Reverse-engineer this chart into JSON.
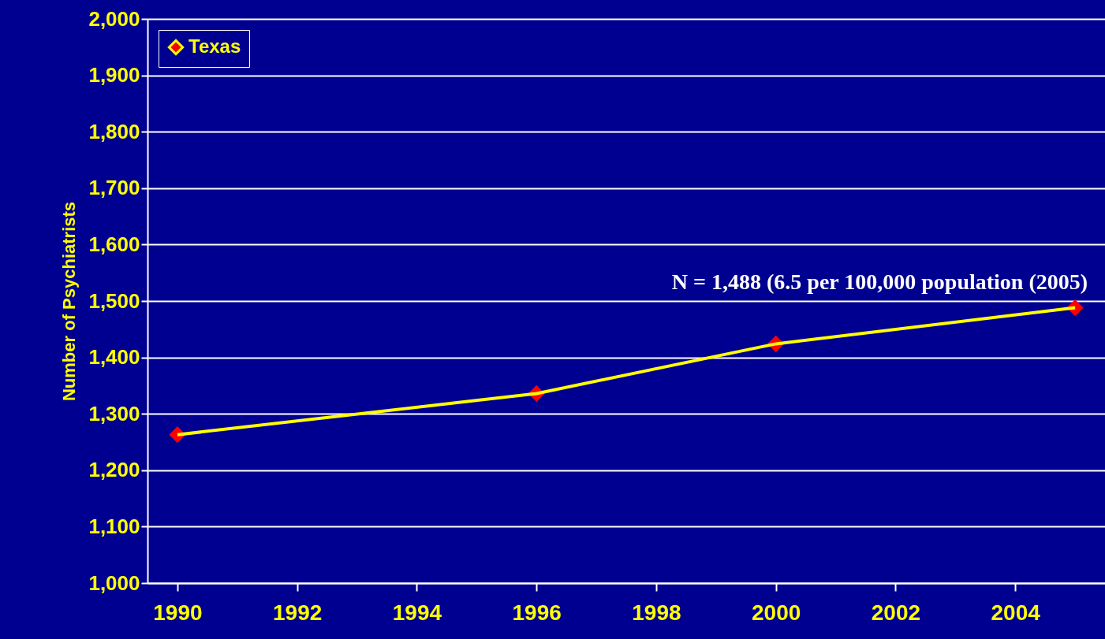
{
  "chart_data": {
    "type": "line",
    "ylabel": "Number of Psychiatrists",
    "x": [
      1990,
      1996,
      2000,
      2005
    ],
    "series": [
      {
        "name": "Texas",
        "color": "#ffff00",
        "values": [
          1263,
          1336,
          1424,
          1488
        ]
      }
    ],
    "xlim": [
      1989.5,
      2005.5
    ],
    "xticks": [
      1990,
      1992,
      1994,
      1996,
      1998,
      2000,
      2002,
      2004
    ],
    "ylim": [
      1000,
      2000
    ],
    "yticks": [
      {
        "value": 1000,
        "label": "1,000"
      },
      {
        "value": 1100,
        "label": "1,100"
      },
      {
        "value": 1200,
        "label": "1,200"
      },
      {
        "value": 1300,
        "label": "1,300"
      },
      {
        "value": 1400,
        "label": "1,400"
      },
      {
        "value": 1500,
        "label": "1,500"
      },
      {
        "value": 1600,
        "label": "1,600"
      },
      {
        "value": 1700,
        "label": "1,700"
      },
      {
        "value": 1800,
        "label": "1,800"
      },
      {
        "value": 1900,
        "label": "1,900"
      },
      {
        "value": 2000,
        "label": "2,000"
      }
    ],
    "annotations": [
      {
        "text": "N = 1,488 (6.5 per 100,000 population (2005)",
        "x": 2005,
        "y": 1488
      }
    ],
    "grid": "y",
    "legend": "top left",
    "marker": "diamond",
    "line_style": "solid"
  }
}
